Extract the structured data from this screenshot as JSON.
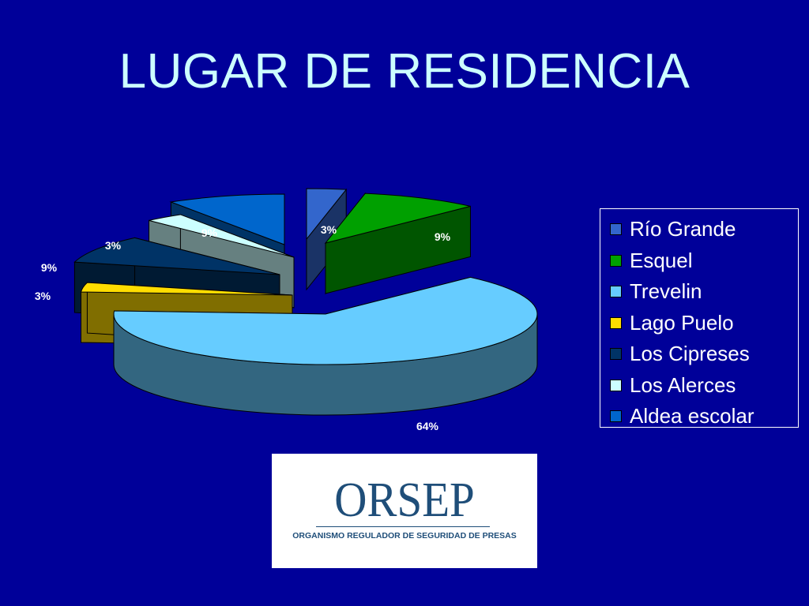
{
  "slide": {
    "title": "LUGAR DE RESIDENCIA",
    "background_color": "#000099",
    "title_color": "#ccffff"
  },
  "chart_data": {
    "type": "pie",
    "title": "",
    "legend_position": "right",
    "categories": [
      "Río Grande",
      "Esquel",
      "Trevelin",
      "Lago Puelo",
      "Los Cipreses",
      "Los Alerces",
      "Aldea escolar"
    ],
    "values": [
      3,
      9,
      64,
      3,
      9,
      3,
      9
    ],
    "labels": [
      "3%",
      "9%",
      "64%",
      "3%",
      "9%",
      "3%",
      "9%"
    ],
    "colors": [
      "#3366cc",
      "#00a000",
      "#66ccff",
      "#ffdd00",
      "#003366",
      "#ccffff",
      "#0066cc"
    ],
    "side_colors": [
      "#1a3366",
      "#005500",
      "#336680",
      "#806e00",
      "#001a33",
      "#668080",
      "#003366"
    ]
  },
  "logo": {
    "name": "ORSEP",
    "subtitle": "ORGANISMO REGULADOR DE SEGURIDAD DE PRESAS"
  }
}
